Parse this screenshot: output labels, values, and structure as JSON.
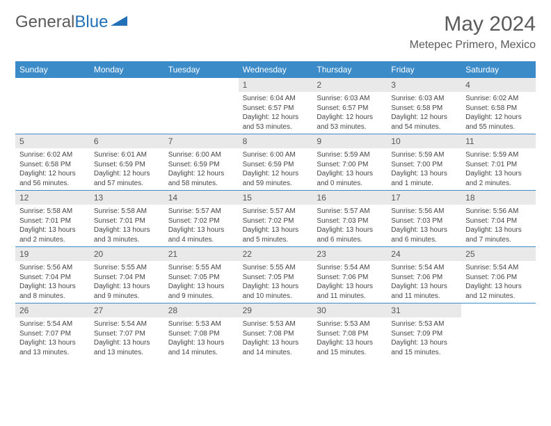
{
  "logo": {
    "text1": "General",
    "text2": "Blue"
  },
  "title": "May 2024",
  "location": "Metepec Primero, Mexico",
  "colors": {
    "header_bg": "#3b8bc9",
    "header_text": "#ffffff",
    "daynum_bg": "#e9e9e9",
    "text": "#444444",
    "logo_gray": "#5a5a5a",
    "logo_blue": "#2270b8",
    "row_border": "#3b8bc9"
  },
  "fonts": {
    "base": "Arial",
    "title_size": 30,
    "location_size": 16,
    "dayname_size": 12,
    "cell_size": 10
  },
  "daynames": [
    "Sunday",
    "Monday",
    "Tuesday",
    "Wednesday",
    "Thursday",
    "Friday",
    "Saturday"
  ],
  "weeks": [
    [
      {
        "day": "",
        "lines": []
      },
      {
        "day": "",
        "lines": []
      },
      {
        "day": "",
        "lines": []
      },
      {
        "day": "1",
        "lines": [
          "Sunrise: 6:04 AM",
          "Sunset: 6:57 PM",
          "Daylight: 12 hours",
          "and 53 minutes."
        ]
      },
      {
        "day": "2",
        "lines": [
          "Sunrise: 6:03 AM",
          "Sunset: 6:57 PM",
          "Daylight: 12 hours",
          "and 53 minutes."
        ]
      },
      {
        "day": "3",
        "lines": [
          "Sunrise: 6:03 AM",
          "Sunset: 6:58 PM",
          "Daylight: 12 hours",
          "and 54 minutes."
        ]
      },
      {
        "day": "4",
        "lines": [
          "Sunrise: 6:02 AM",
          "Sunset: 6:58 PM",
          "Daylight: 12 hours",
          "and 55 minutes."
        ]
      }
    ],
    [
      {
        "day": "5",
        "lines": [
          "Sunrise: 6:02 AM",
          "Sunset: 6:58 PM",
          "Daylight: 12 hours",
          "and 56 minutes."
        ]
      },
      {
        "day": "6",
        "lines": [
          "Sunrise: 6:01 AM",
          "Sunset: 6:59 PM",
          "Daylight: 12 hours",
          "and 57 minutes."
        ]
      },
      {
        "day": "7",
        "lines": [
          "Sunrise: 6:00 AM",
          "Sunset: 6:59 PM",
          "Daylight: 12 hours",
          "and 58 minutes."
        ]
      },
      {
        "day": "8",
        "lines": [
          "Sunrise: 6:00 AM",
          "Sunset: 6:59 PM",
          "Daylight: 12 hours",
          "and 59 minutes."
        ]
      },
      {
        "day": "9",
        "lines": [
          "Sunrise: 5:59 AM",
          "Sunset: 7:00 PM",
          "Daylight: 13 hours",
          "and 0 minutes."
        ]
      },
      {
        "day": "10",
        "lines": [
          "Sunrise: 5:59 AM",
          "Sunset: 7:00 PM",
          "Daylight: 13 hours",
          "and 1 minute."
        ]
      },
      {
        "day": "11",
        "lines": [
          "Sunrise: 5:59 AM",
          "Sunset: 7:01 PM",
          "Daylight: 13 hours",
          "and 2 minutes."
        ]
      }
    ],
    [
      {
        "day": "12",
        "lines": [
          "Sunrise: 5:58 AM",
          "Sunset: 7:01 PM",
          "Daylight: 13 hours",
          "and 2 minutes."
        ]
      },
      {
        "day": "13",
        "lines": [
          "Sunrise: 5:58 AM",
          "Sunset: 7:01 PM",
          "Daylight: 13 hours",
          "and 3 minutes."
        ]
      },
      {
        "day": "14",
        "lines": [
          "Sunrise: 5:57 AM",
          "Sunset: 7:02 PM",
          "Daylight: 13 hours",
          "and 4 minutes."
        ]
      },
      {
        "day": "15",
        "lines": [
          "Sunrise: 5:57 AM",
          "Sunset: 7:02 PM",
          "Daylight: 13 hours",
          "and 5 minutes."
        ]
      },
      {
        "day": "16",
        "lines": [
          "Sunrise: 5:57 AM",
          "Sunset: 7:03 PM",
          "Daylight: 13 hours",
          "and 6 minutes."
        ]
      },
      {
        "day": "17",
        "lines": [
          "Sunrise: 5:56 AM",
          "Sunset: 7:03 PM",
          "Daylight: 13 hours",
          "and 6 minutes."
        ]
      },
      {
        "day": "18",
        "lines": [
          "Sunrise: 5:56 AM",
          "Sunset: 7:04 PM",
          "Daylight: 13 hours",
          "and 7 minutes."
        ]
      }
    ],
    [
      {
        "day": "19",
        "lines": [
          "Sunrise: 5:56 AM",
          "Sunset: 7:04 PM",
          "Daylight: 13 hours",
          "and 8 minutes."
        ]
      },
      {
        "day": "20",
        "lines": [
          "Sunrise: 5:55 AM",
          "Sunset: 7:04 PM",
          "Daylight: 13 hours",
          "and 9 minutes."
        ]
      },
      {
        "day": "21",
        "lines": [
          "Sunrise: 5:55 AM",
          "Sunset: 7:05 PM",
          "Daylight: 13 hours",
          "and 9 minutes."
        ]
      },
      {
        "day": "22",
        "lines": [
          "Sunrise: 5:55 AM",
          "Sunset: 7:05 PM",
          "Daylight: 13 hours",
          "and 10 minutes."
        ]
      },
      {
        "day": "23",
        "lines": [
          "Sunrise: 5:54 AM",
          "Sunset: 7:06 PM",
          "Daylight: 13 hours",
          "and 11 minutes."
        ]
      },
      {
        "day": "24",
        "lines": [
          "Sunrise: 5:54 AM",
          "Sunset: 7:06 PM",
          "Daylight: 13 hours",
          "and 11 minutes."
        ]
      },
      {
        "day": "25",
        "lines": [
          "Sunrise: 5:54 AM",
          "Sunset: 7:06 PM",
          "Daylight: 13 hours",
          "and 12 minutes."
        ]
      }
    ],
    [
      {
        "day": "26",
        "lines": [
          "Sunrise: 5:54 AM",
          "Sunset: 7:07 PM",
          "Daylight: 13 hours",
          "and 13 minutes."
        ]
      },
      {
        "day": "27",
        "lines": [
          "Sunrise: 5:54 AM",
          "Sunset: 7:07 PM",
          "Daylight: 13 hours",
          "and 13 minutes."
        ]
      },
      {
        "day": "28",
        "lines": [
          "Sunrise: 5:53 AM",
          "Sunset: 7:08 PM",
          "Daylight: 13 hours",
          "and 14 minutes."
        ]
      },
      {
        "day": "29",
        "lines": [
          "Sunrise: 5:53 AM",
          "Sunset: 7:08 PM",
          "Daylight: 13 hours",
          "and 14 minutes."
        ]
      },
      {
        "day": "30",
        "lines": [
          "Sunrise: 5:53 AM",
          "Sunset: 7:08 PM",
          "Daylight: 13 hours",
          "and 15 minutes."
        ]
      },
      {
        "day": "31",
        "lines": [
          "Sunrise: 5:53 AM",
          "Sunset: 7:09 PM",
          "Daylight: 13 hours",
          "and 15 minutes."
        ]
      },
      {
        "day": "",
        "lines": []
      }
    ]
  ]
}
